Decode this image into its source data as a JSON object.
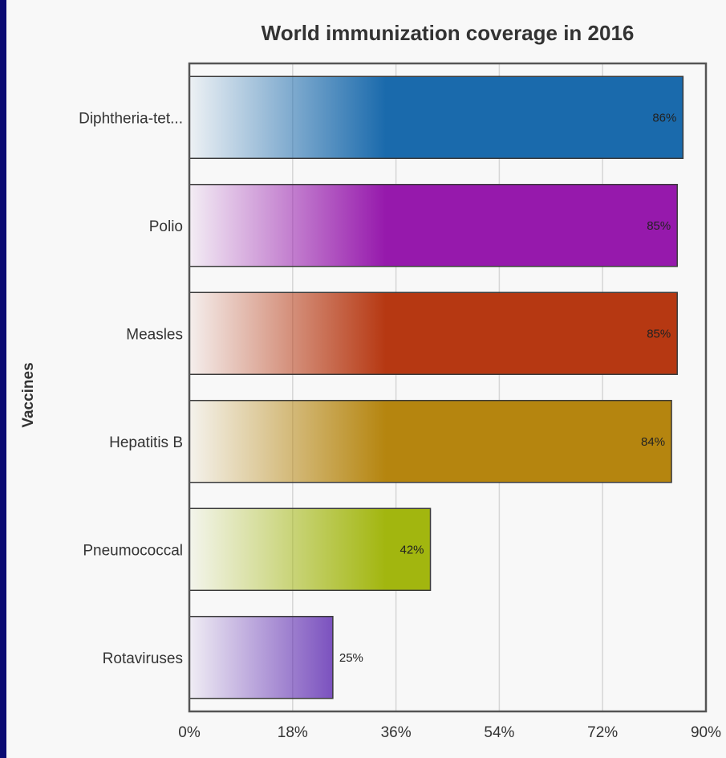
{
  "chart_data": {
    "type": "bar",
    "orientation": "horizontal",
    "title": "World immunization coverage in 2016",
    "xlabel": "",
    "ylabel": "Vaccines",
    "xlim": [
      0,
      90
    ],
    "xticks": [
      0,
      18,
      36,
      54,
      72,
      90
    ],
    "tick_labels": [
      "0%",
      "18%",
      "36%",
      "54%",
      "72%",
      "90%"
    ],
    "grid": true,
    "categories": [
      "Diphtheria-tet...",
      "Polio",
      "Measles",
      "Hepatitis B",
      "Pneumococcal",
      "Rotaviruses"
    ],
    "values": [
      86,
      85,
      85,
      84,
      42,
      25
    ],
    "value_labels": [
      "86%",
      "85%",
      "85%",
      "84%",
      "42%",
      "25%"
    ],
    "colors": [
      "#1a6aac",
      "#9619ac",
      "#b63812",
      "#b5850f",
      "#a2b60f",
      "#5018ab"
    ]
  }
}
